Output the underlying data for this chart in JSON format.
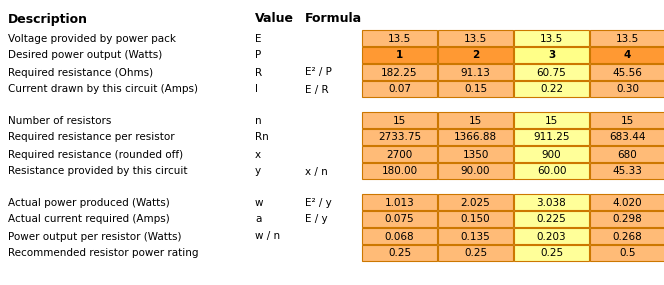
{
  "title_row": [
    "Description",
    "Value",
    "Formula"
  ],
  "sections": [
    {
      "rows": [
        {
          "desc": "Voltage provided by power pack",
          "val": "E",
          "formula": "",
          "cells": [
            "13.5",
            "13.5",
            "13.5",
            "13.5"
          ]
        },
        {
          "desc": "Desired power output (Watts)",
          "val": "P",
          "formula": "",
          "cells": [
            "1",
            "2",
            "3",
            "4"
          ]
        },
        {
          "desc": "Required resistance (Ohms)",
          "val": "R",
          "formula": "E² / P",
          "cells": [
            "182.25",
            "91.13",
            "60.75",
            "45.56"
          ]
        },
        {
          "desc": "Current drawn by this circuit (Amps)",
          "val": "I",
          "formula": "E / R",
          "cells": [
            "0.07",
            "0.15",
            "0.22",
            "0.30"
          ]
        }
      ]
    },
    {
      "rows": [
        {
          "desc": "Number of resistors",
          "val": "n",
          "formula": "",
          "cells": [
            "15",
            "15",
            "15",
            "15"
          ]
        },
        {
          "desc": "Required resistance per resistor",
          "val": "Rn",
          "formula": "",
          "cells": [
            "2733.75",
            "1366.88",
            "911.25",
            "683.44"
          ]
        },
        {
          "desc": "Required resistance (rounded off)",
          "val": "x",
          "formula": "",
          "cells": [
            "2700",
            "1350",
            "900",
            "680"
          ]
        },
        {
          "desc": "Resistance provided by this circuit",
          "val": "y",
          "formula": "x / n",
          "cells": [
            "180.00",
            "90.00",
            "60.00",
            "45.33"
          ]
        }
      ]
    },
    {
      "rows": [
        {
          "desc": "Actual power produced (Watts)",
          "val": "w",
          "formula": "E² / y",
          "cells": [
            "1.013",
            "2.025",
            "3.038",
            "4.020"
          ]
        },
        {
          "desc": "Actual current required (Amps)",
          "val": "a",
          "formula": "E / y",
          "cells": [
            "0.075",
            "0.150",
            "0.225",
            "0.298"
          ]
        },
        {
          "desc": "Power output per resistor (Watts)",
          "val": "w / n",
          "formula": "",
          "cells": [
            "0.068",
            "0.135",
            "0.203",
            "0.268"
          ]
        },
        {
          "desc": "Recommended resistor power rating",
          "val": "",
          "formula": "",
          "cells": [
            "0.25",
            "0.25",
            "0.25",
            "0.5"
          ]
        }
      ]
    }
  ],
  "color_light_orange": "#FFBB77",
  "color_dark_orange": "#FF9933",
  "color_light_yellow": "#FFFF99",
  "color_p_row": "#FF9900",
  "border_color": "#CC7700",
  "bg_color": "#FFFFFF",
  "cell_col_colors": [
    "#FFBB77",
    "#FFBB77",
    "#FFFF99",
    "#FFBB77"
  ],
  "p_row_col_colors": [
    "#FF9933",
    "#FF9933",
    "#FFFF88",
    "#FF9933"
  ]
}
